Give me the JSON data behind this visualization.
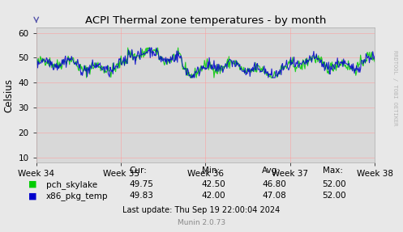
{
  "title": "ACPI Thermal zone temperatures - by month",
  "ylabel": "Celsius",
  "bg_color": "#e8e8e8",
  "plot_bg_color": "#d8d8d8",
  "grid_color": "#ff9999",
  "ylim": [
    8,
    62
  ],
  "yticks": [
    10,
    20,
    30,
    40,
    50,
    60
  ],
  "xtick_labels": [
    "Week 34",
    "Week 35",
    "Week 36",
    "Week 37",
    "Week 38"
  ],
  "series1_color": "#00cc00",
  "series2_color": "#0000cc",
  "legend": [
    {
      "label": "pch_skylake",
      "color": "#00cc00"
    },
    {
      "label": "x86_pkg_temp",
      "color": "#0000cc"
    }
  ],
  "stats": {
    "cur_label": "Cur:",
    "min_label": "Min:",
    "avg_label": "Avg:",
    "max_label": "Max:",
    "pch_skylake": {
      "cur": "49.75",
      "min": "42.50",
      "avg": "46.80",
      "max": "52.00"
    },
    "x86_pkg_temp": {
      "cur": "49.83",
      "min": "42.00",
      "avg": "47.08",
      "max": "52.00"
    }
  },
  "footer": "Last update: Thu Sep 19 22:00:04 2024",
  "munin_version": "Munin 2.0.73",
  "watermark": "RRDTOOL / TOBI OETIKER"
}
